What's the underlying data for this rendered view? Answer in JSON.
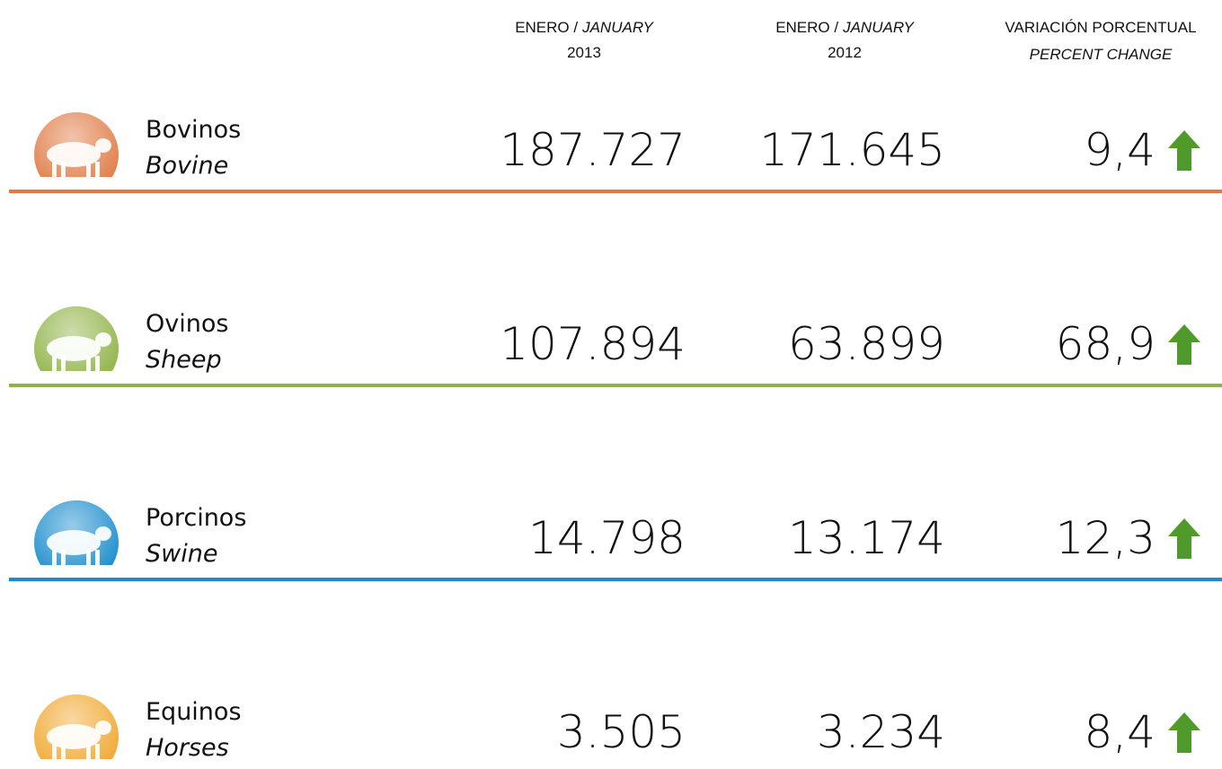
{
  "columns": [
    {
      "label_es": "ENERO /",
      "label_en": "JANUARY",
      "year": "2013"
    },
    {
      "label_es": "ENERO /",
      "label_en": "JANUARY",
      "year": "2012"
    },
    {
      "label_es": "VARIACIÓN PORCENTUAL",
      "label_en": "PERCENT CHANGE"
    }
  ],
  "rows": [
    {
      "name_es": "Bovinos",
      "name_en": "Bovine",
      "jan_2013": "187.727",
      "jan_2012": "171.645",
      "change": "9,4",
      "color": "#e07b45"
    },
    {
      "name_es": "Ovinos",
      "name_en": "Sheep",
      "jan_2013": "107.894",
      "jan_2012": "63.899",
      "change": "68,9",
      "color": "#8fb347"
    },
    {
      "name_es": "Porcinos",
      "name_en": "Swine",
      "jan_2013": "14.798",
      "jan_2012": "13.174",
      "change": "12,3",
      "color": "#1a8ccc"
    },
    {
      "name_es": "Equinos",
      "name_en": "Horses",
      "jan_2013": "3.505",
      "jan_2012": "3.234",
      "change": "8,4",
      "color": "#f0a830"
    }
  ]
}
